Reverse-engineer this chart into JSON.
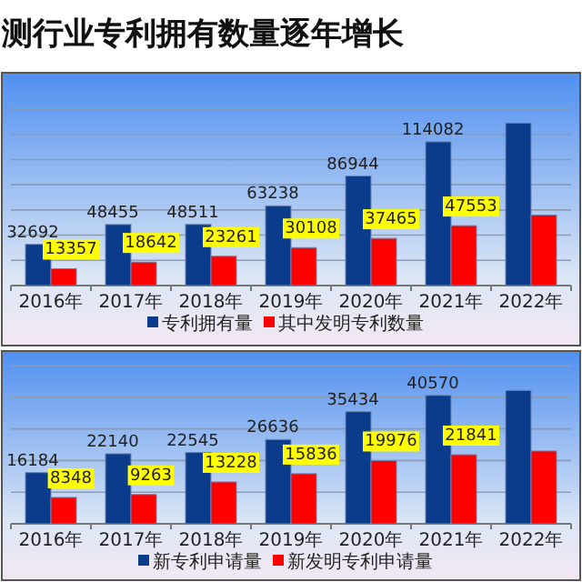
{
  "chart_data": [
    {
      "type": "bar",
      "title": "测行业专利拥有数量逐年增长",
      "categories": [
        "2016年",
        "2017年",
        "2018年",
        "2019年",
        "2020年",
        "2021年",
        "2022年"
      ],
      "series": [
        {
          "name": "专利拥有量",
          "color": "#0b3c8c",
          "values": [
            32692,
            48455,
            48511,
            63238,
            86944,
            114082,
            129000
          ],
          "value_labels": [
            "32692",
            "48455",
            "48511",
            "63238",
            "86944",
            "114082",
            null
          ]
        },
        {
          "name": "其中发明专利数量",
          "color": "#ff0000",
          "values": [
            13357,
            18642,
            23261,
            30108,
            37465,
            47553,
            56000
          ],
          "value_labels": [
            "13357",
            "18642",
            "23261",
            "30108",
            "37465",
            "47553",
            null
          ]
        }
      ],
      "ylim": [
        0,
        140000
      ],
      "yticks": [
        {
          "value": 0,
          "label": null
        },
        {
          "value": 20000,
          "label": null
        },
        {
          "value": 40000,
          "label": null
        },
        {
          "value": 60000,
          "label": null
        },
        {
          "value": 80000,
          "label": null
        },
        {
          "value": 100000,
          "label": null
        },
        {
          "value": 120000,
          "label": null
        },
        {
          "value": 140000,
          "label": null
        }
      ],
      "grid": "y",
      "legend": "bottom"
    },
    {
      "type": "bar",
      "categories": [
        "2016年",
        "2017年",
        "2018年",
        "2019年",
        "2020年",
        "2021年",
        "2022年"
      ],
      "series": [
        {
          "name": "新专利申请量",
          "color": "#0b3c8c",
          "values": [
            16184,
            22140,
            22545,
            26636,
            35434,
            40570,
            42170
          ],
          "value_labels": [
            "16184",
            "22140",
            "22545",
            "26636",
            "35434",
            "40570",
            null
          ]
        },
        {
          "name": "新发明专利申请量",
          "color": "#ff0000",
          "values": [
            8348,
            9263,
            13228,
            15836,
            19976,
            21841,
            23000
          ],
          "value_labels": [
            "8348",
            "9263",
            "13228",
            "15836",
            "19976",
            "21841",
            null
          ]
        }
      ],
      "ylim": [
        0,
        50000
      ],
      "yticks": [
        {
          "value": 0,
          "label": null
        },
        {
          "value": 10000,
          "label": null
        },
        {
          "value": 20000,
          "label": null
        },
        {
          "value": 30000,
          "label": null
        },
        {
          "value": 40000,
          "label": null
        },
        {
          "value": 50000,
          "label": null
        }
      ],
      "grid": "y",
      "legend": "bottom"
    }
  ]
}
